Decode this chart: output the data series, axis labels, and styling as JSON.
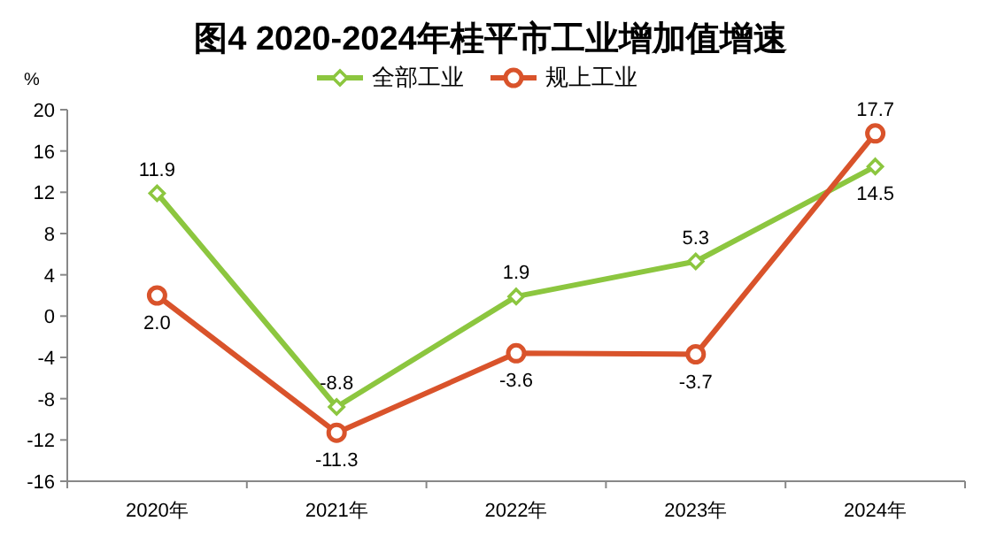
{
  "chart_data": {
    "type": "line",
    "title": "图4 2020-2024年桂平市工业增加值增速",
    "ylabel": "%",
    "categories": [
      "2020年",
      "2021年",
      "2022年",
      "2023年",
      "2024年"
    ],
    "series": [
      {
        "name": "全部工业",
        "color": "#8cc63f",
        "marker": "diamond",
        "values": [
          11.9,
          -8.8,
          1.9,
          5.3,
          14.5
        ],
        "value_labels": [
          "11.9",
          "-8.8",
          "1.9",
          "5.3",
          "14.5"
        ]
      },
      {
        "name": "规上工业",
        "color": "#d9532b",
        "marker": "circle",
        "values": [
          2.0,
          -11.3,
          -3.6,
          -3.7,
          17.7
        ],
        "value_labels": [
          "2.0",
          "-11.3",
          "-3.6",
          "-3.7",
          "17.7"
        ]
      }
    ],
    "ylim": [
      -16,
      20
    ],
    "yticks": [
      -16,
      -12,
      -8,
      -4,
      0,
      4,
      8,
      12,
      16,
      20
    ],
    "legend": "top",
    "data_labels": true
  }
}
